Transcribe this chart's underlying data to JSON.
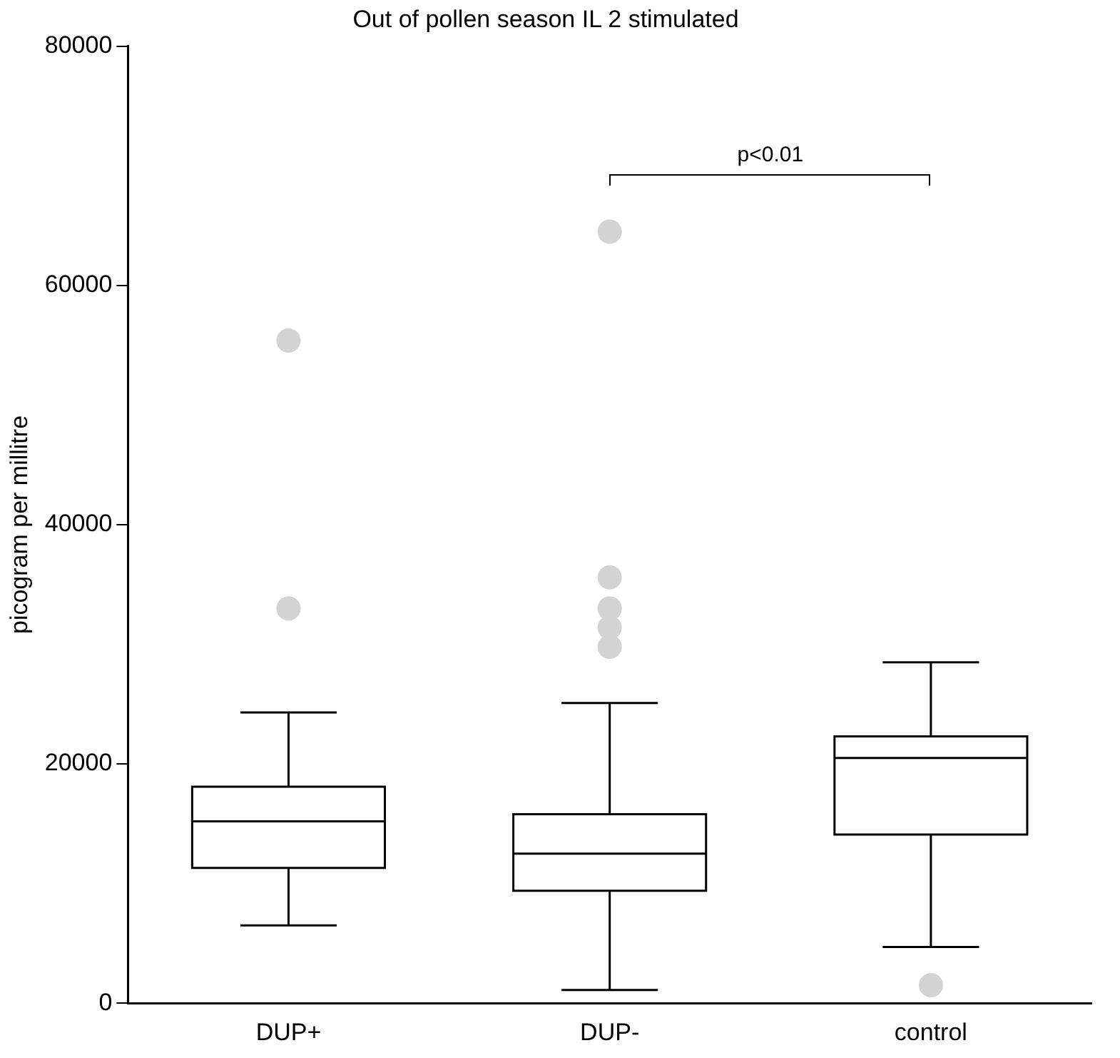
{
  "chart_data": {
    "type": "box",
    "title": "Out of pollen season IL 2 stimulated",
    "ylabel": "picogram per millitre",
    "categories": [
      "DUP+",
      "DUP-",
      "control"
    ],
    "boxes": [
      {
        "low": 6500,
        "q1": 11300,
        "median": 15200,
        "q3": 18100,
        "high": 24300,
        "outliers": [
          55400,
          33000
        ]
      },
      {
        "low": 1100,
        "q1": 9400,
        "median": 12500,
        "q3": 15800,
        "high": 25100,
        "outliers": [
          64500,
          35600,
          33000,
          31400,
          29800
        ]
      },
      {
        "low": 4700,
        "q1": 14100,
        "median": 20500,
        "q3": 22300,
        "high": 28500,
        "outliers": [
          1500
        ]
      }
    ],
    "ylim": [
      0,
      80000
    ],
    "yticks": [
      0,
      20000,
      40000,
      60000,
      80000
    ],
    "grid": false,
    "legend": false,
    "annotations": [
      "p<0.01"
    ]
  }
}
